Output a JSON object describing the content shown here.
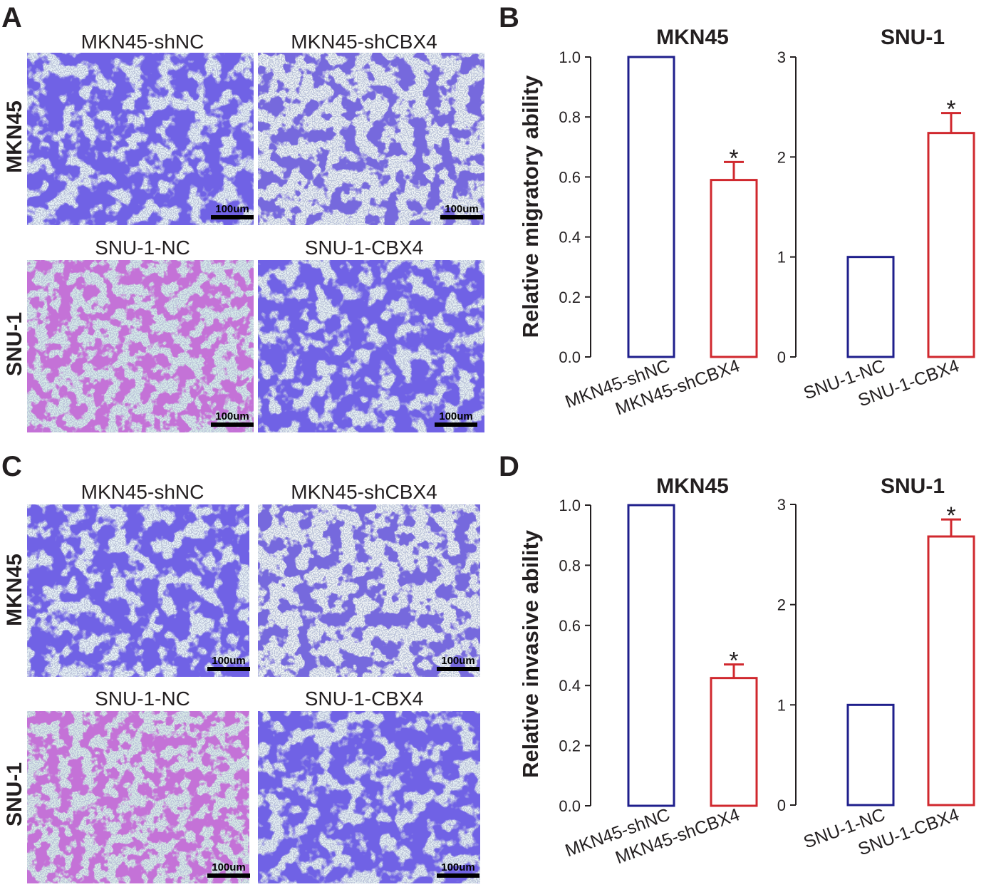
{
  "figure": {
    "panel_labels": {
      "A": "A",
      "B": "B",
      "C": "C",
      "D": "D"
    },
    "micrographs": {
      "titles": [
        "MKN45-shNC",
        "MKN45-shCBX4",
        "SNU-1-NC",
        "SNU-1-CBX4",
        "MKN45-shNC",
        "MKN45-shCBX4",
        "SNU-1-NC",
        "SNU-1-CBX4"
      ],
      "row_labels": [
        "MKN45",
        "SNU-1",
        "MKN45",
        "SNU-1"
      ],
      "scale_bar": "100um",
      "colors": {
        "blue_stain": "#2a1fc6",
        "purple_stain": "#8a2ab0",
        "background": "#e8f2f6"
      }
    },
    "colors": {
      "control": "#1f1f8c",
      "treated": "#d0282e",
      "text": "#231f20"
    }
  },
  "chart_data": [
    {
      "type": "bar",
      "panel": "B",
      "title": "MKN45",
      "ylabel": "Relative migratory ability",
      "categories": [
        "MKN45-shNC",
        "MKN45-shCBX4"
      ],
      "values": [
        1.0,
        0.59
      ],
      "errors": [
        0,
        0.06
      ],
      "significance": [
        "",
        "*"
      ],
      "ylim": [
        0,
        1.0
      ],
      "yticks": [
        "0.0",
        "0.2",
        "0.4",
        "0.6",
        "0.8",
        "1.0"
      ]
    },
    {
      "type": "bar",
      "panel": "B",
      "title": "SNU-1",
      "ylabel": "",
      "categories": [
        "SNU-1-NC",
        "SNU-1-CBX4"
      ],
      "values": [
        1.0,
        2.24
      ],
      "errors": [
        0,
        0.2
      ],
      "significance": [
        "",
        "*"
      ],
      "ylim": [
        0,
        3
      ],
      "yticks": [
        "0",
        "1",
        "2",
        "3"
      ]
    },
    {
      "type": "bar",
      "panel": "D",
      "title": "MKN45",
      "ylabel": "Relative invasive ability",
      "categories": [
        "MKN45-shNC",
        "MKN45-shCBX4"
      ],
      "values": [
        1.0,
        0.425
      ],
      "errors": [
        0,
        0.045
      ],
      "significance": [
        "",
        "*"
      ],
      "ylim": [
        0,
        1.0
      ],
      "yticks": [
        "0.0",
        "0.2",
        "0.4",
        "0.6",
        "0.8",
        "1.0"
      ]
    },
    {
      "type": "bar",
      "panel": "D",
      "title": "SNU-1",
      "ylabel": "",
      "categories": [
        "SNU-1-NC",
        "SNU-1-CBX4"
      ],
      "values": [
        1.0,
        2.68
      ],
      "errors": [
        0,
        0.17
      ],
      "significance": [
        "",
        "*"
      ],
      "ylim": [
        0,
        3
      ],
      "yticks": [
        "0",
        "1",
        "2",
        "3"
      ]
    }
  ]
}
